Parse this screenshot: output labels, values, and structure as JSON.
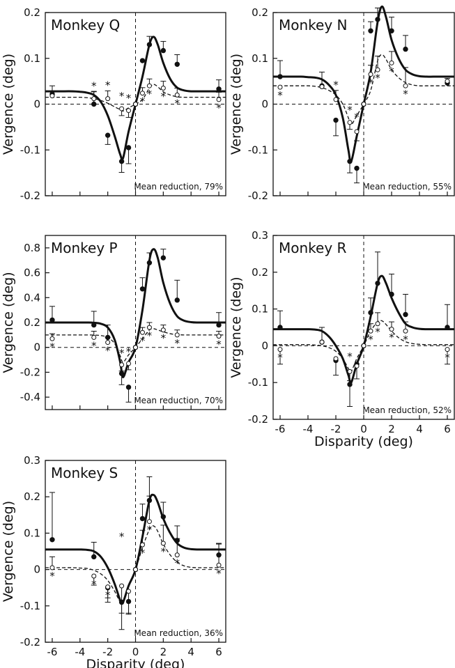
{
  "chart_data": [
    {
      "type": "line",
      "title": "Monkey Q",
      "note": "Mean reduction, 79%",
      "ylabel": "Vergence (deg)",
      "xlabel": "",
      "xlim": [
        -6.5,
        6.5
      ],
      "ylim": [
        -0.2,
        0.2
      ],
      "yticks": [
        "0.2",
        "0.1",
        "0",
        "-0.1",
        "-0.2"
      ],
      "xticks": [],
      "series": [
        {
          "style": "filled-solid",
          "x": [
            -6,
            -3,
            -2,
            -1,
            -0.5,
            0,
            0.5,
            1,
            2,
            3,
            6
          ],
          "y": [
            0.022,
            0.0,
            -0.068,
            -0.125,
            -0.095,
            0.0,
            0.095,
            0.13,
            0.117,
            0.087,
            0.033
          ],
          "err": [
            0.018,
            0.028,
            0.02,
            0.024,
            0.035,
            0.0,
            0.0,
            0.018,
            0.02,
            0.021,
            0.02
          ],
          "fit_y": [
            0.028,
            0.028,
            0.028,
            0.027,
            0.025,
            0.02,
            0.005,
            -0.025,
            -0.07,
            -0.11,
            -0.118,
            -0.06,
            0.0,
            0.06,
            0.13,
            0.147,
            0.13,
            0.09,
            0.055,
            0.036,
            0.03,
            0.028,
            0.028,
            0.028,
            0.028,
            0.028
          ]
        },
        {
          "style": "open-dashed",
          "x": [
            -6,
            -3,
            -2,
            -1,
            -0.5,
            0,
            0.5,
            1,
            2,
            3,
            6
          ],
          "y": [
            0.018,
            0.012,
            0.012,
            -0.01,
            -0.014,
            0.0,
            0.024,
            0.04,
            0.035,
            0.02,
            0.01
          ],
          "err": [
            0.0,
            0.015,
            0.017,
            0.015,
            0.015,
            0.0,
            0.012,
            0.015,
            0.015,
            0.015,
            0.016
          ],
          "stars_above": [
            -3,
            -2,
            -1,
            -0.5
          ],
          "stars_below": [
            0.5,
            1,
            2,
            3,
            6
          ],
          "fit_y": [
            0.015,
            0.015,
            0.015,
            0.015,
            0.014,
            0.012,
            0.008,
            0.002,
            -0.006,
            -0.012,
            -0.015,
            -0.008,
            0.0,
            0.01,
            0.035,
            0.043,
            0.038,
            0.027,
            0.02,
            0.016,
            0.015,
            0.015,
            0.015,
            0.015,
            0.015,
            0.015
          ]
        }
      ]
    },
    {
      "type": "line",
      "title": "Monkey N",
      "note": "Mean reduction, 55%",
      "ylabel": "Vergence (deg)",
      "xlabel": "",
      "xlim": [
        -6.5,
        6.5
      ],
      "ylim": [
        -0.2,
        0.2
      ],
      "yticks": [
        "0.2",
        "0.1",
        "0",
        "-0.1",
        "-0.2"
      ],
      "xticks": [],
      "series": [
        {
          "style": "filled-solid",
          "x": [
            -6,
            -3,
            -2,
            -1,
            -0.5,
            0,
            0.5,
            1,
            2,
            3,
            6
          ],
          "y": [
            0.06,
            0.04,
            -0.035,
            -0.125,
            -0.14,
            0.0,
            0.16,
            0.185,
            0.16,
            0.12,
            0.046
          ],
          "err": [
            0.035,
            0.03,
            0.034,
            0.025,
            0.032,
            0.0,
            0.02,
            0.025,
            0.03,
            0.03,
            0.01
          ],
          "fit_y": [
            0.06,
            0.06,
            0.06,
            0.059,
            0.058,
            0.054,
            0.042,
            0.02,
            -0.03,
            -0.1,
            -0.125,
            -0.07,
            0.0,
            0.07,
            0.18,
            0.213,
            0.19,
            0.14,
            0.1,
            0.075,
            0.065,
            0.061,
            0.06,
            0.06,
            0.06,
            0.06
          ]
        },
        {
          "style": "open-dashed",
          "x": [
            -6,
            -3,
            -2,
            -1,
            -0.5,
            0,
            0.5,
            1,
            2,
            3,
            6
          ],
          "y": [
            0.037,
            0.038,
            0.01,
            -0.04,
            -0.06,
            0.0,
            0.065,
            0.075,
            0.09,
            0.04,
            0.05
          ],
          "err": [
            0.0,
            0.0,
            0.02,
            0.015,
            0.02,
            0.0,
            0.02,
            0.03,
            0.025,
            0.04,
            0.0
          ],
          "stars_above": [
            -2,
            -1,
            -0.5
          ],
          "stars_below": [
            -6,
            0.5,
            1,
            2,
            3
          ],
          "fit_y": [
            0.04,
            0.04,
            0.04,
            0.04,
            0.039,
            0.036,
            0.03,
            0.02,
            0.0,
            -0.03,
            -0.045,
            -0.025,
            0.0,
            0.03,
            0.095,
            0.108,
            0.098,
            0.075,
            0.058,
            0.047,
            0.042,
            0.04,
            0.04,
            0.04,
            0.04,
            0.04
          ]
        }
      ]
    },
    {
      "type": "line",
      "title": "Monkey P",
      "note": "Mean reduction, 70%",
      "ylabel": "Vergence (deg)",
      "xlabel": "",
      "xlim": [
        -6.5,
        6.5
      ],
      "ylim": [
        -0.5,
        0.9
      ],
      "yticks": [
        "0.8",
        "0.6",
        "0.4",
        "0.2",
        "0",
        "-0.2",
        "-0.4"
      ],
      "xticks": [],
      "series": [
        {
          "style": "filled-solid",
          "x": [
            -6,
            -3,
            -2,
            -1,
            -0.5,
            0,
            0.5,
            1,
            2,
            3,
            6
          ],
          "y": [
            0.22,
            0.18,
            0.08,
            -0.21,
            -0.32,
            0.0,
            0.47,
            0.68,
            0.72,
            0.38,
            0.18
          ],
          "err": [
            0.11,
            0.11,
            0.1,
            0.09,
            0.12,
            0.0,
            0.09,
            0.08,
            0.07,
            0.16,
            0.1
          ],
          "fit_y": [
            0.2,
            0.2,
            0.2,
            0.2,
            0.2,
            0.198,
            0.19,
            0.16,
            0.06,
            -0.12,
            -0.24,
            -0.12,
            0.0,
            0.3,
            0.7,
            0.79,
            0.72,
            0.52,
            0.35,
            0.25,
            0.215,
            0.203,
            0.2,
            0.2,
            0.2,
            0.2
          ]
        },
        {
          "style": "open-dashed",
          "x": [
            -6,
            -3,
            -2,
            -1,
            -0.5,
            0,
            0.5,
            1,
            2,
            3,
            6
          ],
          "y": [
            0.07,
            0.08,
            0.04,
            -0.14,
            -0.13,
            0.0,
            0.12,
            0.16,
            0.14,
            0.1,
            0.09
          ],
          "err": [
            0.04,
            0.05,
            0.04,
            0.05,
            0.05,
            0.0,
            0.04,
            0.04,
            0.04,
            0.04,
            0.04
          ],
          "stars_above": [
            -1,
            -0.5
          ],
          "stars_below": [
            -6,
            -3,
            -2,
            0.5,
            1,
            2,
            3,
            6
          ],
          "fit_y": [
            0.1,
            0.1,
            0.1,
            0.1,
            0.1,
            0.099,
            0.095,
            0.08,
            0.03,
            -0.07,
            -0.12,
            -0.06,
            0.0,
            0.07,
            0.14,
            0.15,
            0.14,
            0.125,
            0.11,
            0.103,
            0.1,
            0.1,
            0.1,
            0.1,
            0.1,
            0.1
          ]
        }
      ]
    },
    {
      "type": "line",
      "title": "Monkey R",
      "note": "Mean reduction, 52%",
      "ylabel": "Vergence (deg)",
      "xlabel": "Disparity (deg)",
      "xlim": [
        -6.5,
        6.5
      ],
      "ylim": [
        -0.2,
        0.3
      ],
      "yticks": [
        "0.3",
        "0.2",
        "0.1",
        "0",
        "-0.1",
        "-0.2"
      ],
      "xticks": [
        "-6",
        "-4",
        "-2",
        "0",
        "2",
        "4",
        "6"
      ],
      "series": [
        {
          "style": "filled-solid",
          "x": [
            -6,
            -3,
            -2,
            -1,
            -0.5,
            0,
            0.5,
            1,
            2,
            3,
            6
          ],
          "y": [
            0.05,
            0.01,
            -0.04,
            -0.105,
            -0.05,
            0.0,
            0.09,
            0.17,
            0.14,
            0.085,
            0.05
          ],
          "err": [
            0.045,
            0.04,
            0.04,
            0.06,
            0.04,
            0.0,
            0.04,
            0.085,
            0.055,
            0.055,
            0.062
          ],
          "fit_y": [
            0.045,
            0.045,
            0.045,
            0.045,
            0.044,
            0.04,
            0.025,
            0.0,
            -0.035,
            -0.08,
            -0.1,
            -0.05,
            0.0,
            0.08,
            0.17,
            0.19,
            0.17,
            0.13,
            0.09,
            0.06,
            0.05,
            0.046,
            0.045,
            0.045,
            0.045,
            0.045
          ]
        },
        {
          "style": "open-dashed",
          "x": [
            -6,
            -3,
            -2,
            -1,
            -0.5,
            0,
            0.5,
            1,
            2,
            3,
            6
          ],
          "y": [
            -0.01,
            0.01,
            -0.035,
            -0.07,
            -0.055,
            0.0,
            0.04,
            0.06,
            0.045,
            0.04,
            -0.01
          ],
          "err": [
            0.04,
            0.0,
            0.0,
            0.025,
            0.0,
            0.0,
            0.02,
            0.03,
            0.02,
            0.025,
            0.04
          ],
          "stars_above": [
            -1
          ],
          "stars_below": [
            -6,
            0.5,
            1,
            2,
            3,
            6
          ],
          "fit_y": [
            0.003,
            0.003,
            0.003,
            0.003,
            0.002,
            0.0,
            -0.005,
            -0.015,
            -0.035,
            -0.062,
            -0.07,
            -0.035,
            0.0,
            0.04,
            0.065,
            0.068,
            0.058,
            0.04,
            0.022,
            0.011,
            0.006,
            0.004,
            0.003,
            0.003,
            0.003,
            0.003
          ]
        }
      ]
    },
    {
      "type": "line",
      "title": "Monkey S",
      "note": "Mean reduction, 36%",
      "ylabel": "Vergence (deg)",
      "xlabel": "Disparity (deg)",
      "xlim": [
        -6.5,
        6.5
      ],
      "ylim": [
        -0.2,
        0.3
      ],
      "yticks": [
        "0.3",
        "0.2",
        "0.1",
        "0",
        "-0.1",
        "-0.2"
      ],
      "xticks": [
        "-6",
        "-4",
        "-2",
        "0",
        "2",
        "4",
        "6"
      ],
      "series": [
        {
          "style": "filled-solid",
          "x": [
            -6,
            -3,
            -2,
            -1,
            -0.5,
            0,
            0.5,
            1,
            2,
            3,
            6
          ],
          "y": [
            0.082,
            0.035,
            -0.05,
            -0.09,
            -0.088,
            0.0,
            0.14,
            0.19,
            0.145,
            0.08,
            0.04
          ],
          "err": [
            0.13,
            0.04,
            0.04,
            0.03,
            0.035,
            0.0,
            0.04,
            0.065,
            0.04,
            0.04,
            0.03
          ],
          "fit_y": [
            0.055,
            0.055,
            0.055,
            0.055,
            0.054,
            0.05,
            0.035,
            0.005,
            -0.04,
            -0.085,
            -0.09,
            -0.045,
            0.0,
            0.09,
            0.19,
            0.205,
            0.185,
            0.14,
            0.1,
            0.072,
            0.06,
            0.056,
            0.055,
            0.055,
            0.055,
            0.055
          ]
        },
        {
          "style": "open-dashed",
          "x": [
            -6,
            -3,
            -2,
            -1,
            -0.5,
            0,
            0.5,
            1,
            2,
            3,
            6
          ],
          "y": [
            0.005,
            -0.018,
            -0.048,
            -0.045,
            -0.06,
            0.0,
            0.068,
            0.132,
            0.072,
            0.04,
            0.012
          ],
          "err": [
            0.03,
            0.025,
            0.03,
            0.12,
            0.06,
            0.0,
            0.04,
            0.07,
            0.05,
            0.045,
            0.06
          ],
          "stars_above": [
            -1
          ],
          "stars_below": [
            -6,
            -3,
            -2,
            0.5,
            1,
            2,
            3,
            6
          ],
          "fit_y": [
            0.005,
            0.005,
            0.005,
            0.004,
            0.003,
            -0.002,
            -0.012,
            -0.03,
            -0.06,
            -0.09,
            -0.09,
            -0.045,
            0.0,
            0.06,
            0.11,
            0.12,
            0.105,
            0.07,
            0.04,
            0.02,
            0.01,
            0.006,
            0.005,
            0.005,
            0.005,
            0.005
          ]
        }
      ]
    }
  ]
}
